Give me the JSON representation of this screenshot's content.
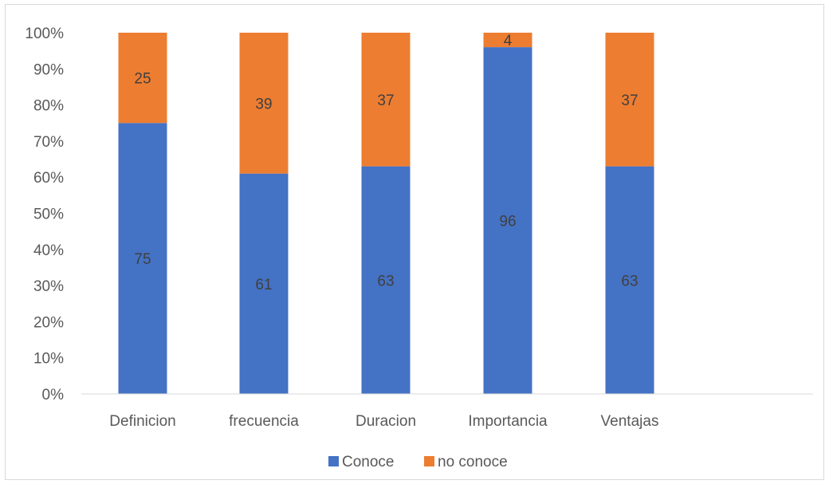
{
  "chart_data": {
    "type": "bar",
    "stacked": true,
    "percent": true,
    "categories": [
      "Definicion",
      "frecuencia",
      "Duracion",
      "Importancia",
      "Ventajas"
    ],
    "series": [
      {
        "name": "Conoce",
        "values": [
          75,
          61,
          63,
          96,
          63
        ],
        "color": "#4472c4"
      },
      {
        "name": "no conoce",
        "values": [
          25,
          39,
          37,
          4,
          37
        ],
        "color": "#ed7d31"
      }
    ],
    "yticks": [
      "0%",
      "10%",
      "20%",
      "30%",
      "40%",
      "50%",
      "60%",
      "70%",
      "80%",
      "90%",
      "100%"
    ],
    "ylim": [
      0,
      100
    ],
    "grid": false,
    "legend": "bottom"
  }
}
